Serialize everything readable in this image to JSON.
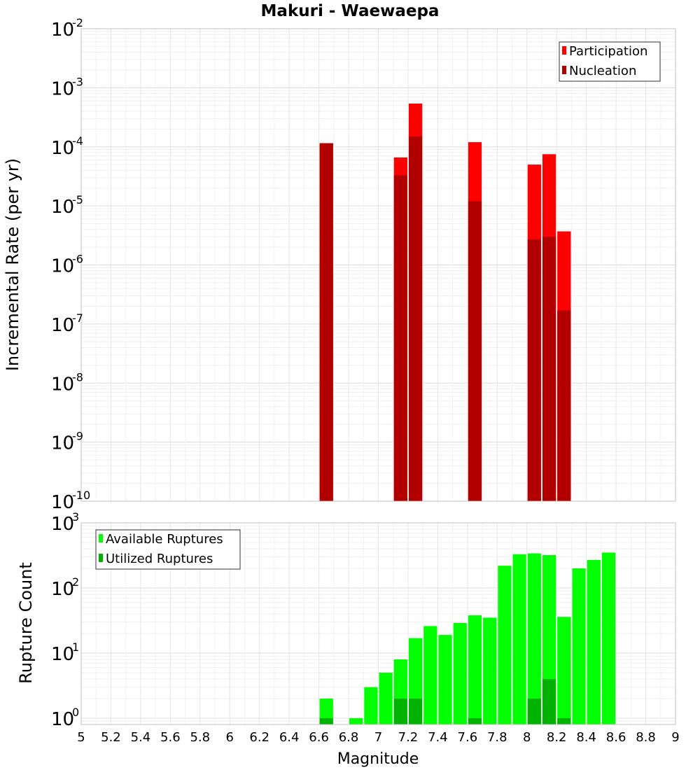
{
  "title": "Makuri - Waewaepa",
  "xlabel": "Magnitude",
  "colors": {
    "participation": "#ff0000",
    "nucleation": "#b20000",
    "available": "#00ff00",
    "utilized": "#00b200",
    "grid": "#e8e8e8",
    "frame": "#c0c0c0"
  },
  "chart_data": [
    {
      "type": "bar",
      "ylabel": "Incremental Rate (per yr)",
      "yscale": "log",
      "xlim": [
        5,
        9
      ],
      "ylim": [
        1e-10,
        0.01
      ],
      "legend": {
        "position": "top-right",
        "entries": [
          "Participation",
          "Nucleation"
        ]
      },
      "ytick_exponents": [
        "-10",
        "-9",
        "-8",
        "-7",
        "-6",
        "-5",
        "-4",
        "-3",
        "-2"
      ],
      "bar_width": 0.1,
      "series": [
        {
          "name": "Participation",
          "color": "#ff0000",
          "x": [
            6.65,
            7.15,
            7.25,
            7.65,
            8.05,
            8.15,
            8.25
          ],
          "values": [
            0.000115,
            6.6e-05,
            0.00054,
            0.00012,
            5e-05,
            7.5e-05,
            3.7e-06
          ]
        },
        {
          "name": "Nucleation",
          "color": "#b20000",
          "x": [
            6.65,
            7.15,
            7.25,
            7.65,
            8.05,
            8.15,
            8.25
          ],
          "values": [
            0.000115,
            3.3e-05,
            0.00015,
            1.2e-05,
            2.7e-06,
            3e-06,
            1.7e-07
          ]
        }
      ]
    },
    {
      "type": "bar",
      "ylabel": "Rupture Count",
      "xlabel": "Magnitude",
      "yscale": "log",
      "xlim": [
        5,
        9
      ],
      "ylim": [
        0.8,
        1000
      ],
      "legend": {
        "position": "top-left",
        "entries": [
          "Available Ruptures",
          "Utilized Ruptures"
        ]
      },
      "ytick_exponents": [
        "0",
        "1",
        "2",
        "3"
      ],
      "xticks": [
        "5",
        "5.2",
        "5.4",
        "5.6",
        "5.8",
        "6",
        "6.2",
        "6.4",
        "6.6",
        "6.8",
        "7",
        "7.2",
        "7.4",
        "7.6",
        "7.8",
        "8",
        "8.2",
        "8.4",
        "8.6",
        "8.8",
        "9"
      ],
      "bar_width": 0.1,
      "series": [
        {
          "name": "Available Ruptures",
          "color": "#00ff00",
          "x": [
            6.65,
            6.85,
            6.95,
            7.05,
            7.15,
            7.25,
            7.35,
            7.45,
            7.55,
            7.65,
            7.75,
            7.85,
            7.95,
            8.05,
            8.15,
            8.25,
            8.35,
            8.45,
            8.55
          ],
          "values": [
            2,
            1,
            3,
            5,
            8,
            17,
            26,
            19,
            29,
            38,
            35,
            220,
            330,
            340,
            320,
            36,
            200,
            270,
            350
          ]
        },
        {
          "name": "Utilized Ruptures",
          "color": "#00b200",
          "x": [
            6.65,
            7.15,
            7.25,
            7.65,
            8.05,
            8.15,
            8.25
          ],
          "values": [
            1,
            2,
            2,
            1,
            2,
            4,
            1
          ]
        }
      ]
    }
  ]
}
